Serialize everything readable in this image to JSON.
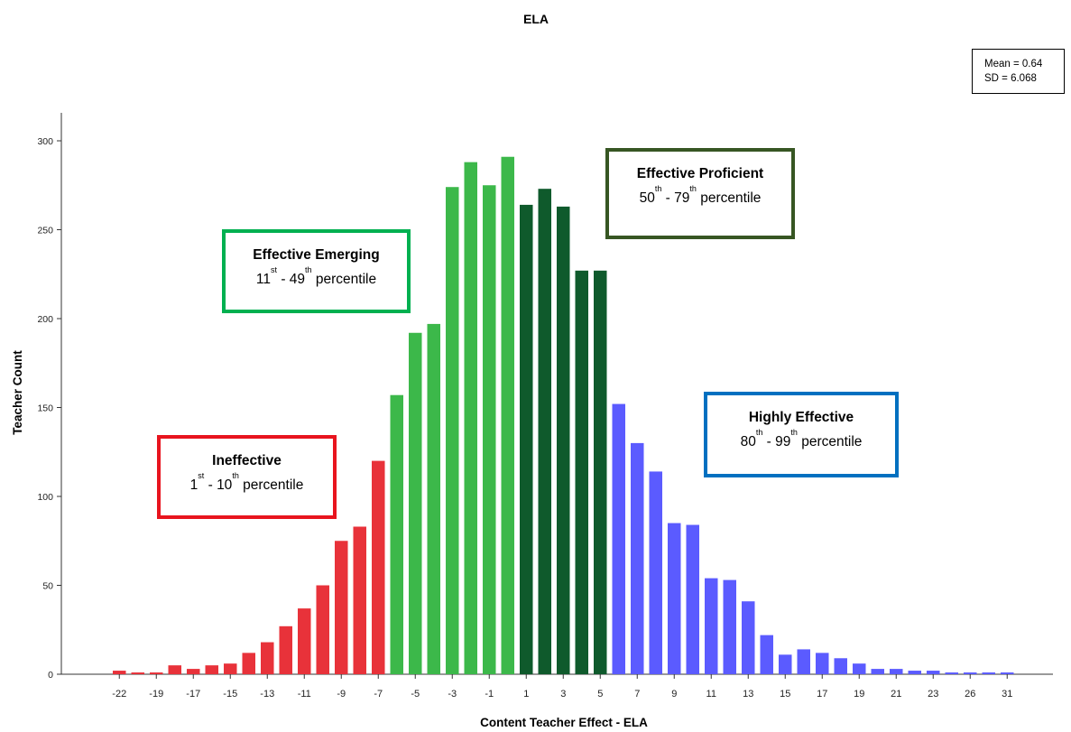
{
  "chart_data": {
    "type": "bar",
    "title": "ELA",
    "xlabel": "Content Teacher Effect - ELA",
    "ylabel": "Teacher Count",
    "ylim": [
      0,
      320
    ],
    "yticks": [
      0,
      50,
      100,
      150,
      200,
      250,
      300
    ],
    "categories": [
      -22,
      -21,
      -19,
      -18,
      -17,
      -16,
      -15,
      -14,
      -13,
      -12,
      -11,
      -10,
      -9,
      -8,
      -7,
      -6,
      -5,
      -4,
      -3,
      -2,
      -1,
      0,
      1,
      2,
      3,
      4,
      5,
      6,
      7,
      8,
      9,
      10,
      11,
      12,
      13,
      14,
      15,
      16,
      17,
      18,
      19,
      20,
      21,
      22,
      23,
      24,
      26,
      28,
      31,
      33
    ],
    "xtick_labels": [
      "-22",
      "-19",
      "-17",
      "-15",
      "-13",
      "-11",
      "-9",
      "-7",
      "-5",
      "-3",
      "-1",
      "1",
      "3",
      "5",
      "7",
      "9",
      "11",
      "13",
      "15",
      "17",
      "19",
      "21",
      "23",
      "26",
      "31"
    ],
    "values": [
      2,
      1,
      1,
      5,
      3,
      5,
      6,
      12,
      18,
      27,
      37,
      50,
      75,
      83,
      120,
      157,
      192,
      197,
      274,
      288,
      275,
      291,
      264,
      273,
      263,
      227,
      227,
      152,
      130,
      114,
      85,
      84,
      54,
      53,
      41,
      22,
      11,
      14,
      12,
      9,
      6,
      3,
      3,
      2,
      2,
      1,
      1,
      1,
      1,
      0
    ],
    "bands": [
      {
        "name": "Ineffective",
        "range": "1st - 10th percentile",
        "color": "#e8323a",
        "from": -22,
        "to": -7
      },
      {
        "name": "Effective Emerging",
        "range": "11st - 49th percentile",
        "color": "#3cb84a",
        "from": -6,
        "to": 0
      },
      {
        "name": "Effective Proficient",
        "range": "50th - 79th percentile",
        "color": "#0f5a2c",
        "from": 1,
        "to": 5
      },
      {
        "name": "Highly Effective",
        "range": "80th - 99th percentile",
        "color": "#5b5bff",
        "from": 6,
        "to": 33
      }
    ],
    "stats": {
      "mean": "Mean = 0.64",
      "sd": "SD = 6.068"
    },
    "legend_placement": "top-right",
    "grid": false
  },
  "annotations": {
    "ineffective": {
      "title": "Ineffective",
      "n1": "1",
      "s1": "st",
      "n2": "10",
      "s2": "th",
      "tail": "percentile"
    },
    "emerging": {
      "title": "Effective Emerging",
      "n1": "11",
      "s1": "st",
      "n2": "49",
      "s2": "th",
      "tail": "percentile"
    },
    "proficient": {
      "title": "Effective Proficient",
      "n1": "50",
      "s1": "th",
      "n2": "79",
      "s2": "th",
      "tail": "percentile"
    },
    "highly": {
      "title": "Highly Effective",
      "n1": "80",
      "s1": "th",
      "n2": "99",
      "s2": "th",
      "tail": "percentile"
    }
  }
}
